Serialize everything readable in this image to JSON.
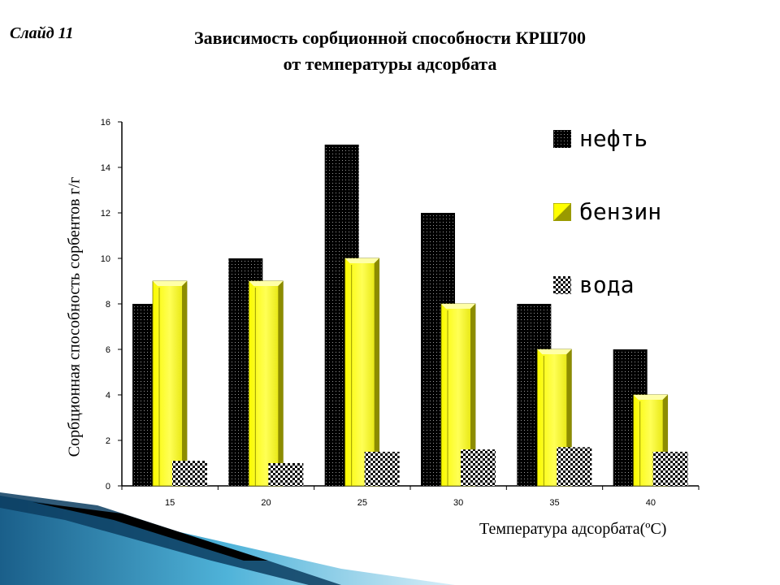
{
  "slide": {
    "label": "Слайд 11"
  },
  "chart_data": {
    "type": "bar",
    "title_line1": "Зависимость сорбционной способности КРШ700",
    "title_line2": "от температуры адсорбата",
    "xlabel": "Температура адсорбата(ºС)",
    "ylabel": "Сорбционная способность сорбентов г/г",
    "categories": [
      "15",
      "20",
      "25",
      "30",
      "35",
      "40"
    ],
    "ylim": [
      0,
      16
    ],
    "yticks": [
      "0",
      "2",
      "4",
      "6",
      "8",
      "10",
      "12",
      "14",
      "16"
    ],
    "series": [
      {
        "name": "нефть",
        "values": [
          8,
          10,
          15,
          12,
          8,
          6
        ],
        "color": "#000000"
      },
      {
        "name": "бензин",
        "values": [
          9,
          9,
          10,
          8,
          6,
          4
        ],
        "color": "#ffff00"
      },
      {
        "name": "вода",
        "values": [
          1.1,
          1.0,
          1.5,
          1.6,
          1.7,
          1.5
        ],
        "color": "#ffffff"
      }
    ],
    "legend_position": "right",
    "grid": false
  }
}
